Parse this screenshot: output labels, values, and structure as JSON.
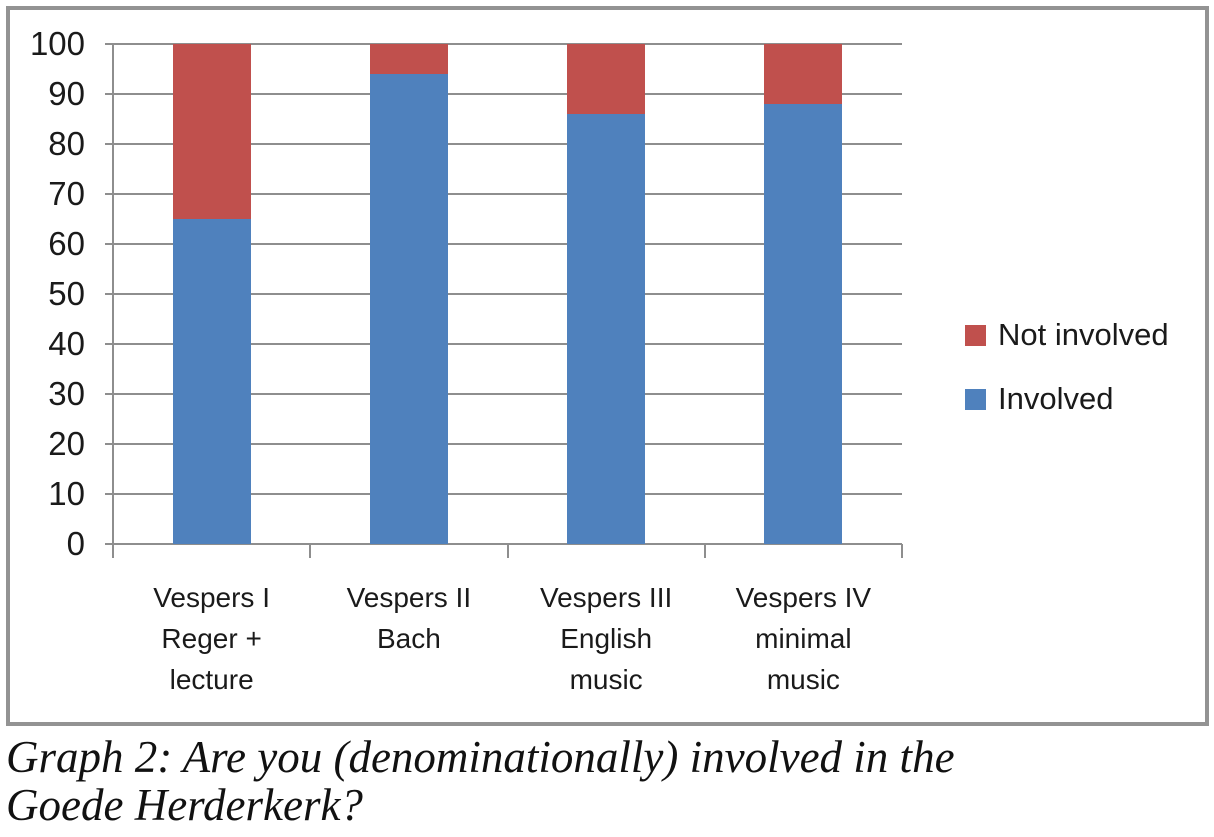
{
  "chart_data": {
    "type": "bar",
    "stacked": true,
    "title": "",
    "xlabel": "",
    "ylabel": "",
    "ylim": [
      0,
      100
    ],
    "ytick_step": 10,
    "yticks": [
      0,
      10,
      20,
      30,
      40,
      50,
      60,
      70,
      80,
      90,
      100
    ],
    "grid": true,
    "legend_position": "right",
    "categories": [
      "Vespers I Reger + lecture",
      "Vespers II Bach",
      "Vespers III English music",
      "Vespers IV minimal music"
    ],
    "categories_lines": [
      [
        "Vespers I",
        "Reger +",
        "lecture"
      ],
      [
        "Vespers II",
        "Bach"
      ],
      [
        "Vespers III",
        "English",
        "music"
      ],
      [
        "Vespers IV",
        "minimal",
        "music"
      ]
    ],
    "series": [
      {
        "name": "Involved",
        "color": "#4F81BD",
        "values": [
          65,
          94,
          86,
          88
        ]
      },
      {
        "name": "Not involved",
        "color": "#C0504D",
        "values": [
          35,
          6,
          14,
          12
        ]
      }
    ]
  },
  "legend": {
    "items": [
      {
        "label": "Not involved",
        "color": "#C0504D"
      },
      {
        "label": "Involved",
        "color": "#4F81BD"
      }
    ]
  },
  "caption": {
    "line1": "Graph 2: Are you (denominationally) involved in the",
    "line2": "Goede Herderkerk?"
  },
  "colors": {
    "involved_blue": "#4F81BD",
    "not_involved_red": "#C0504D",
    "gridline_gray": "#8E8E8E",
    "frame_gray": "#939393",
    "text": "#1A1A1A"
  }
}
